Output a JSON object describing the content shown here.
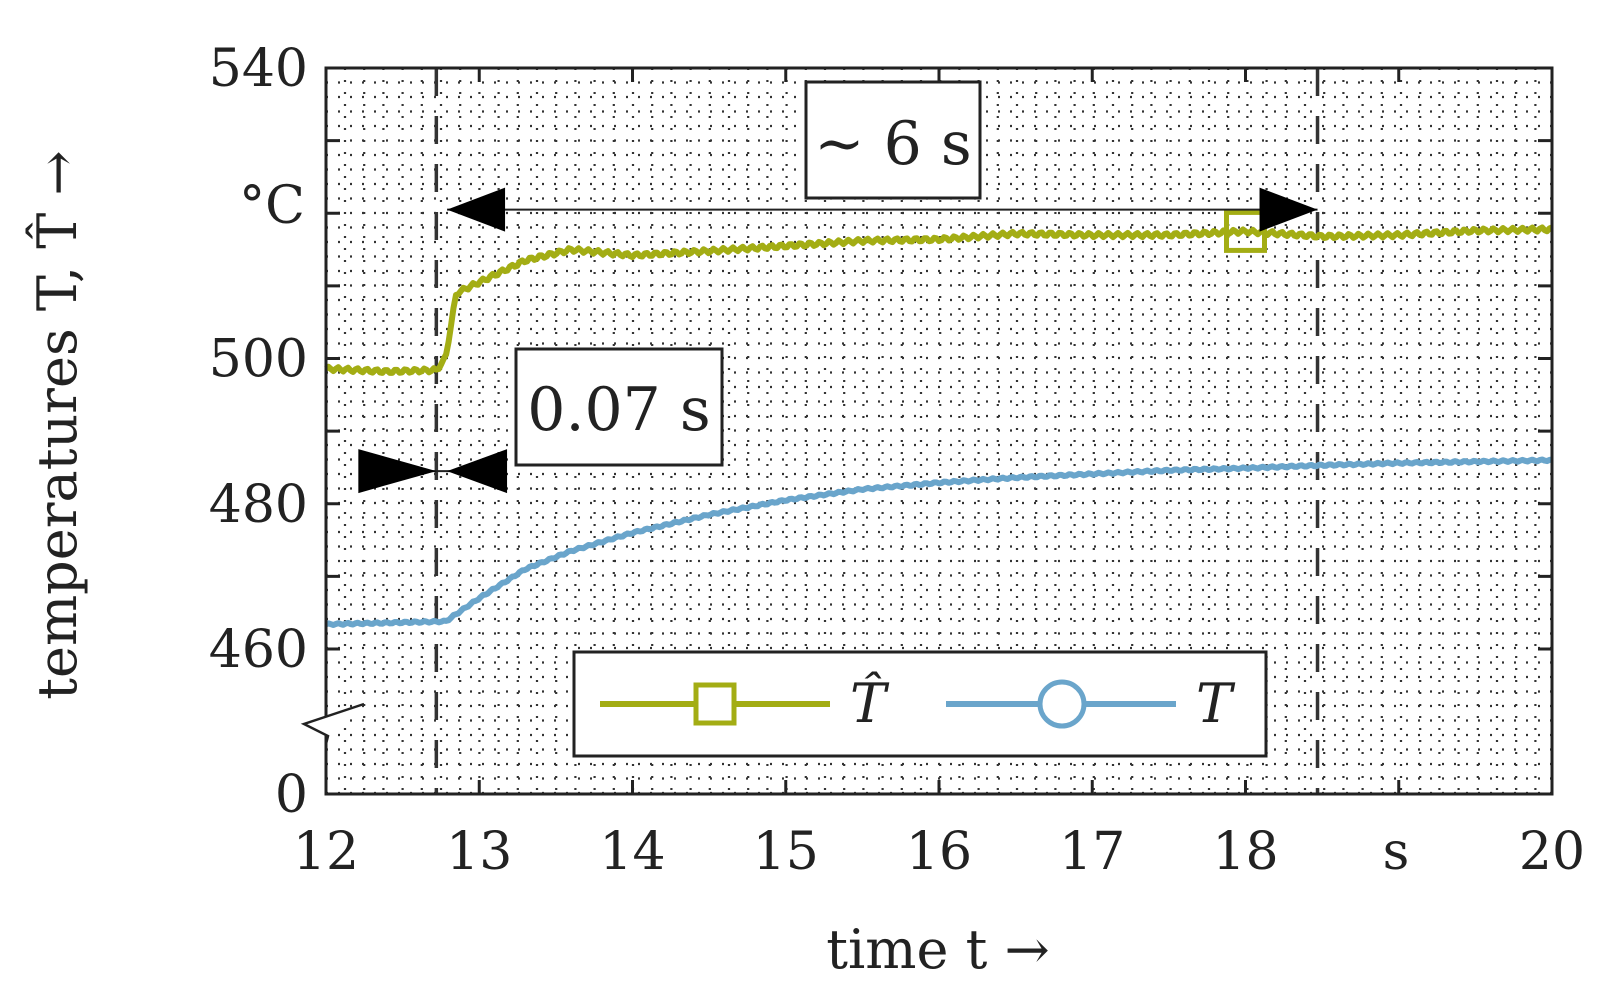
{
  "chart_data": {
    "type": "line",
    "xlabel": "time  t →",
    "ylabel": "temperatures  T, T̂ →",
    "x_unit": "s",
    "y_unit": "°C",
    "xlim": [
      12,
      20
    ],
    "x_ticks": [
      "12",
      "13",
      "14",
      "15",
      "16",
      "17",
      "18",
      "20"
    ],
    "y_ticks": [
      "0",
      "460",
      "480",
      "500",
      "540"
    ],
    "y_axis_break": "between 0 and 460",
    "grid": "dotted",
    "legend_position": "bottom-center",
    "series": [
      {
        "name": "T̂",
        "color": "#a3ad14",
        "marker": "square",
        "x": [
          12.0,
          12.4,
          12.72,
          12.78,
          12.85,
          13.0,
          13.3,
          13.6,
          14.0,
          14.5,
          15.0,
          15.5,
          16.0,
          16.5,
          17.0,
          17.5,
          18.0,
          18.5,
          19.0,
          19.5,
          20.0
        ],
        "y": [
          498.6,
          498.2,
          498.4,
          500.0,
          509.0,
          510.5,
          513.5,
          515.0,
          514.2,
          514.8,
          515.5,
          516.2,
          516.4,
          517.2,
          517.0,
          517.0,
          517.5,
          516.8,
          517.0,
          517.6,
          517.8
        ]
      },
      {
        "name": "T",
        "color": "#6aa5cb",
        "marker": "circle",
        "x": [
          12.0,
          12.4,
          12.78,
          13.0,
          13.3,
          13.6,
          14.0,
          14.5,
          15.0,
          15.5,
          16.0,
          16.5,
          17.0,
          17.5,
          18.0,
          18.5,
          19.0,
          19.5,
          20.0
        ],
        "y": [
          463.4,
          463.6,
          463.8,
          467.0,
          471.0,
          473.5,
          476.0,
          478.5,
          480.5,
          482.0,
          482.9,
          483.6,
          484.1,
          484.6,
          484.9,
          485.3,
          485.6,
          485.8,
          486.0
        ]
      }
    ],
    "vertical_markers": [
      12.72,
      18.47
    ],
    "annotations": [
      {
        "text": "0.07 s",
        "x_from": 12.72,
        "x_to": 12.79,
        "y": 484.5
      },
      {
        "text": "~ 6 s",
        "x_from": 12.79,
        "x_to": 18.47,
        "y": 520.5
      }
    ]
  }
}
